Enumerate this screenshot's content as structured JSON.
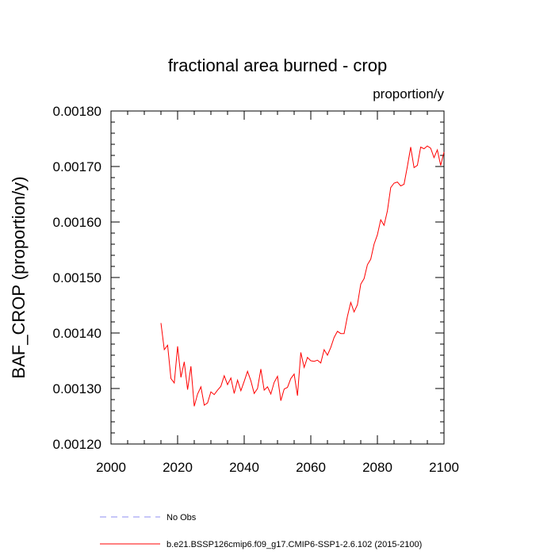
{
  "chart_data": {
    "type": "line",
    "title": "fractional area burned - crop",
    "units": "proportion/y",
    "ylabel": "BAF_CROP  (proportion/y)",
    "xlabel": "",
    "xlim": [
      2000,
      2100
    ],
    "ylim": [
      0.0012,
      0.0018
    ],
    "x_ticks": [
      "2000",
      "2020",
      "2040",
      "2060",
      "2080",
      "2100"
    ],
    "y_ticks": [
      "0.00120",
      "0.00130",
      "0.00140",
      "0.00150",
      "0.00160",
      "0.00170",
      "0.00180"
    ],
    "grid": false,
    "legend_position": "bottom",
    "series": [
      {
        "name": "b.e21.BSSP126cmip6.f09_g17.CMIP6-SSP1-2.6.102 (2015-2100)",
        "color": "#ff0000",
        "style": "solid",
        "x": [
          2015,
          2016,
          2017,
          2018,
          2019,
          2020,
          2021,
          2022,
          2023,
          2024,
          2025,
          2026,
          2027,
          2028,
          2029,
          2030,
          2031,
          2032,
          2033,
          2034,
          2035,
          2036,
          2037,
          2038,
          2039,
          2040,
          2041,
          2042,
          2043,
          2044,
          2045,
          2046,
          2047,
          2048,
          2049,
          2050,
          2051,
          2052,
          2053,
          2054,
          2055,
          2056,
          2057,
          2058,
          2059,
          2060,
          2061,
          2062,
          2063,
          2064,
          2065,
          2066,
          2067,
          2068,
          2069,
          2070,
          2071,
          2072,
          2073,
          2074,
          2075,
          2076,
          2077,
          2078,
          2079,
          2080,
          2081,
          2082,
          2083,
          2084,
          2085,
          2086,
          2087,
          2088,
          2089,
          2090,
          2091,
          2092,
          2093,
          2094,
          2095,
          2096,
          2097,
          2098,
          2099,
          2100
        ],
        "y": [
          0.001418,
          0.00137,
          0.001378,
          0.001318,
          0.00131,
          0.001376,
          0.00132,
          0.001348,
          0.001298,
          0.00134,
          0.001268,
          0.00129,
          0.001303,
          0.00127,
          0.001274,
          0.001294,
          0.001289,
          0.001297,
          0.001304,
          0.001323,
          0.001307,
          0.001319,
          0.001291,
          0.001315,
          0.001296,
          0.001313,
          0.001331,
          0.001314,
          0.001291,
          0.0013,
          0.001335,
          0.001297,
          0.001303,
          0.00129,
          0.001311,
          0.001322,
          0.001278,
          0.001299,
          0.001302,
          0.001318,
          0.001326,
          0.001287,
          0.001365,
          0.001338,
          0.001356,
          0.00135,
          0.001349,
          0.001351,
          0.001346,
          0.00137,
          0.00136,
          0.001374,
          0.001392,
          0.001403,
          0.001399,
          0.001399,
          0.00143,
          0.001455,
          0.001438,
          0.001451,
          0.001488,
          0.001498,
          0.001523,
          0.001533,
          0.00156,
          0.001577,
          0.001604,
          0.001594,
          0.00162,
          0.001662,
          0.00167,
          0.001672,
          0.001665,
          0.001668,
          0.0017,
          0.001735,
          0.001698,
          0.001702,
          0.001735,
          0.001732,
          0.001737,
          0.001733,
          0.001716,
          0.00173,
          0.001702,
          0.001726
        ]
      },
      {
        "name": "No Obs",
        "color": "#8c8cf0",
        "style": "dashed",
        "x": [],
        "y": []
      }
    ]
  }
}
